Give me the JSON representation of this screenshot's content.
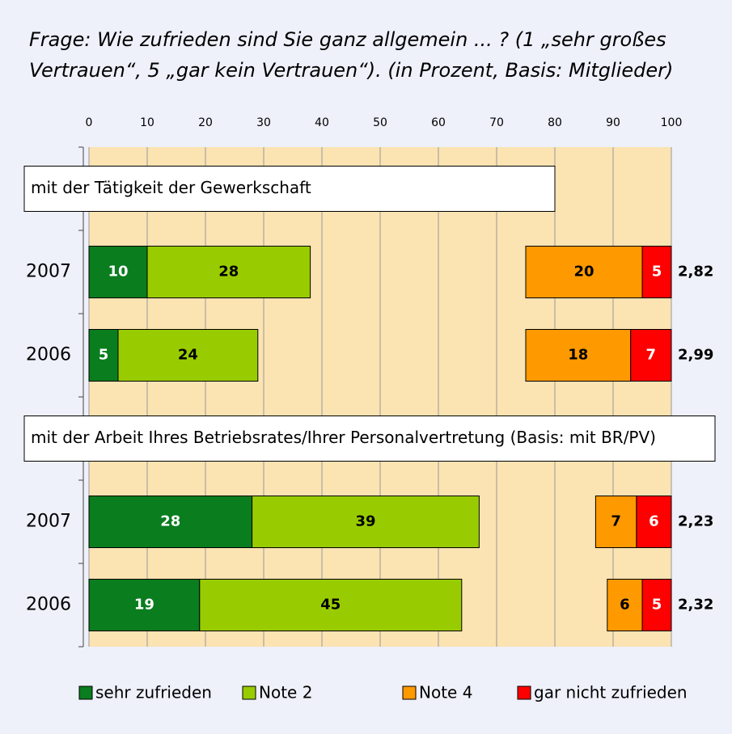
{
  "chart_data": {
    "type": "bar",
    "orientation": "horizontal",
    "title_lines": [
      "Frage: Wie zufrieden sind Sie ganz allgemein ... ? (1 „sehr großes",
      "Vertrauen“, 5 „gar kein Vertrauen“). (in Prozent, Basis: Mitglieder)"
    ],
    "group_titles": [
      "mit der Tätigkeit der Gewerkschaft",
      "mit der Arbeit Ihres Betriebsrates/Ihrer Personalvertretung (Basis: mit BR/PV)"
    ],
    "categories": [
      "2007",
      "2006",
      "2007",
      "2006"
    ],
    "mean_labels": [
      "2,82",
      "2,99",
      "2,23",
      "2,32"
    ],
    "series": [
      {
        "name": "sehr zufrieden",
        "color": "#0a7d1e",
        "values": [
          10,
          5,
          28,
          19
        ]
      },
      {
        "name": "Note 2",
        "color": "#99cc00",
        "values": [
          28,
          24,
          39,
          45
        ]
      },
      {
        "name": "Note 4",
        "color": "#ff9900",
        "values": [
          20,
          18,
          7,
          6
        ]
      },
      {
        "name": "gar nicht zufrieden",
        "color": "#ff0000",
        "values": [
          5,
          7,
          6,
          5
        ]
      }
    ],
    "xlim": [
      0,
      100
    ],
    "xticks": [
      0,
      10,
      20,
      30,
      40,
      50,
      60,
      70,
      80,
      90,
      100
    ],
    "grid": true
  }
}
